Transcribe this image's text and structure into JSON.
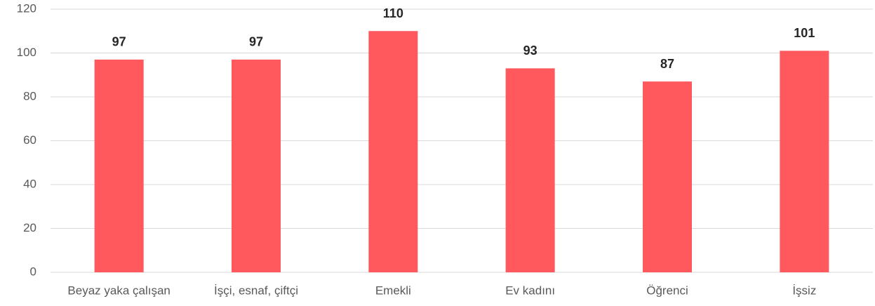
{
  "chart_data": {
    "type": "bar",
    "categories": [
      "Beyaz yaka çalışan",
      "İşçi, esnaf, çiftçi",
      "Emekli",
      "Ev kadını",
      "Öğrenci",
      "İşsiz"
    ],
    "values": [
      97,
      97,
      110,
      93,
      87,
      101
    ],
    "color": "#ff585d",
    "ylim": [
      0,
      120
    ],
    "yticks": [
      0,
      20,
      40,
      60,
      80,
      100,
      120
    ],
    "grid": true
  }
}
